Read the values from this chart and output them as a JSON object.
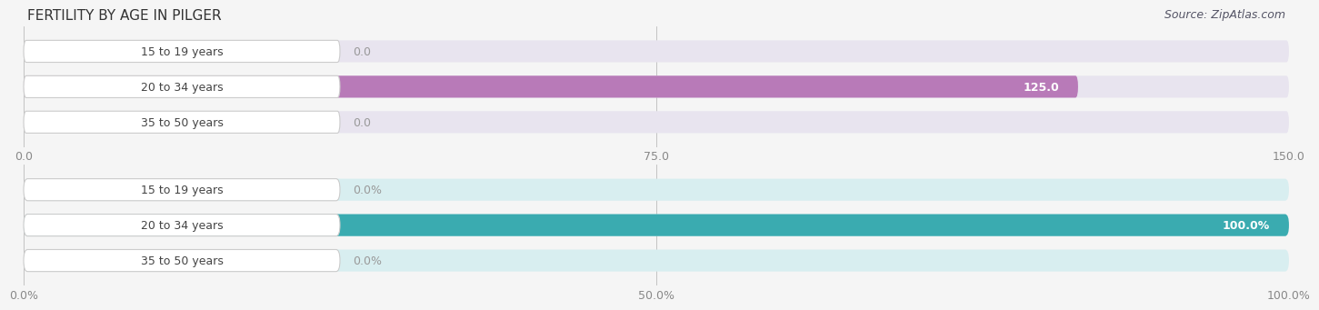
{
  "title": "FERTILITY BY AGE IN PILGER",
  "source": "Source: ZipAtlas.com",
  "top_chart": {
    "categories": [
      "15 to 19 years",
      "20 to 34 years",
      "35 to 50 years"
    ],
    "values": [
      0.0,
      125.0,
      0.0
    ],
    "xlim": [
      0,
      150.0
    ],
    "xticks": [
      0.0,
      75.0,
      150.0
    ],
    "xtick_labels": [
      "0.0",
      "75.0",
      "150.0"
    ],
    "bar_color": "#b87ab8",
    "bar_bg_color": "#e8e4ef",
    "label_bg_color": "#f0eef5",
    "label_inside_color": "#ffffff",
    "label_outside_color": "#999999"
  },
  "bottom_chart": {
    "categories": [
      "15 to 19 years",
      "20 to 34 years",
      "35 to 50 years"
    ],
    "values": [
      0.0,
      100.0,
      0.0
    ],
    "xlim": [
      0,
      100.0
    ],
    "xticks": [
      0.0,
      50.0,
      100.0
    ],
    "xtick_labels": [
      "0.0%",
      "50.0%",
      "100.0%"
    ],
    "bar_color": "#3aabb0",
    "bar_bg_color": "#d8eef0",
    "label_bg_color": "#e8f5f6",
    "label_inside_color": "#ffffff",
    "label_outside_color": "#999999"
  },
  "label_color": "#444444",
  "title_color": "#333333",
  "source_color": "#555566",
  "title_fontsize": 11,
  "source_fontsize": 9,
  "tick_fontsize": 9,
  "bar_label_fontsize": 9,
  "category_fontsize": 9,
  "bar_height": 0.62,
  "fig_width": 14.06,
  "fig_height": 3.31,
  "background_color": "#f5f5f5",
  "plot_bg_color": "#f5f5f5"
}
